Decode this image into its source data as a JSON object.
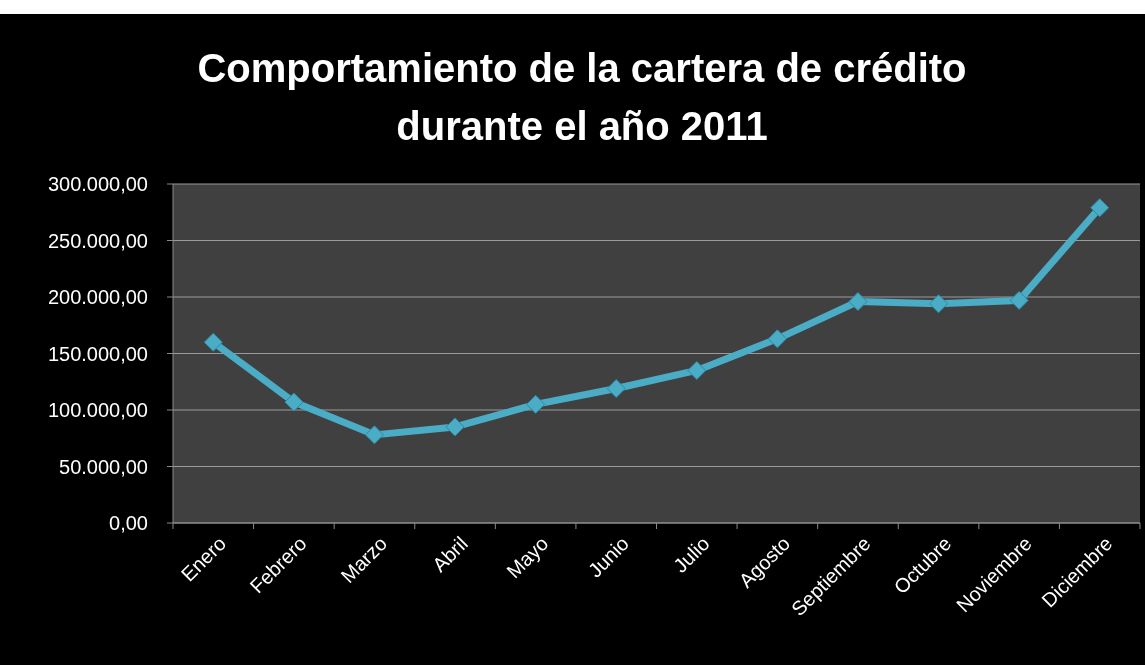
{
  "chart_data": {
    "type": "line",
    "title": "Comportamiento de la cartera de crédito durante el año 2011",
    "categories": [
      "Enero",
      "Febrero",
      "Marzo",
      "Abril",
      "Mayo",
      "Junio",
      "Julio",
      "Agosto",
      "Septiembre",
      "Octubre",
      "Noviembre",
      "Diciembre"
    ],
    "series": [
      {
        "color": "#4bacc6",
        "values": [
          160000,
          107000,
          78000,
          85000,
          105000,
          119000,
          135000,
          163000,
          196000,
          194000,
          197000,
          279000
        ]
      }
    ],
    "ylim": [
      0,
      300000
    ],
    "yticks": [
      {
        "value": 0,
        "label": "0,00"
      },
      {
        "value": 50000,
        "label": "50.000,00"
      },
      {
        "value": 100000,
        "label": "100.000,00"
      },
      {
        "value": 150000,
        "label": "150.000,00"
      },
      {
        "value": 200000,
        "label": "200.000,00"
      },
      {
        "value": 250000,
        "label": "250.000,00"
      },
      {
        "value": 300000,
        "label": "300.000,00"
      }
    ],
    "grid": "y",
    "marker": "diamond",
    "line_style": "solid"
  }
}
